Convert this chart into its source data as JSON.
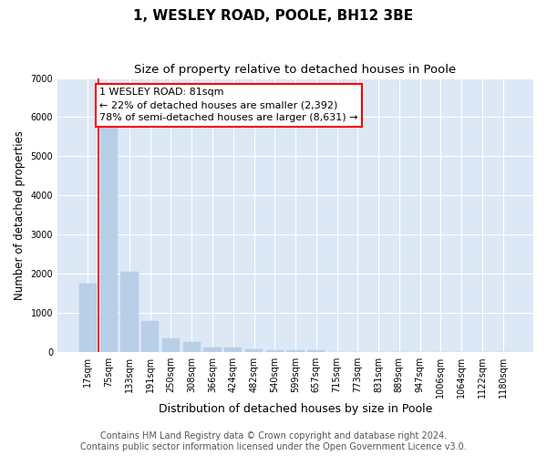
{
  "title1": "1, WESLEY ROAD, POOLE, BH12 3BE",
  "title2": "Size of property relative to detached houses in Poole",
  "xlabel": "Distribution of detached houses by size in Poole",
  "ylabel": "Number of detached properties",
  "categories": [
    "17sqm",
    "75sqm",
    "133sqm",
    "191sqm",
    "250sqm",
    "308sqm",
    "366sqm",
    "424sqm",
    "482sqm",
    "540sqm",
    "599sqm",
    "657sqm",
    "715sqm",
    "773sqm",
    "831sqm",
    "889sqm",
    "947sqm",
    "1006sqm",
    "1064sqm",
    "1122sqm",
    "1180sqm"
  ],
  "values": [
    1750,
    5850,
    2050,
    800,
    340,
    250,
    130,
    110,
    80,
    50,
    50,
    50,
    0,
    0,
    0,
    0,
    0,
    0,
    0,
    0,
    0
  ],
  "bar_color": "#b8cfe8",
  "bar_edge_color": "#b8cfe8",
  "vline_x": 0.5,
  "vline_color": "red",
  "annotation_text": "1 WESLEY ROAD: 81sqm\n← 22% of detached houses are smaller (2,392)\n78% of semi-detached houses are larger (8,631) →",
  "annotation_box_color": "white",
  "annotation_box_edgecolor": "red",
  "ylim": [
    0,
    7000
  ],
  "yticks": [
    0,
    1000,
    2000,
    3000,
    4000,
    5000,
    6000,
    7000
  ],
  "plot_bg_color": "#dce8f5",
  "footer1": "Contains HM Land Registry data © Crown copyright and database right 2024.",
  "footer2": "Contains public sector information licensed under the Open Government Licence v3.0.",
  "title_fontsize": 11,
  "subtitle_fontsize": 9.5,
  "tick_fontsize": 7,
  "ylabel_fontsize": 8.5,
  "xlabel_fontsize": 9,
  "footer_fontsize": 7,
  "annot_fontsize": 8
}
